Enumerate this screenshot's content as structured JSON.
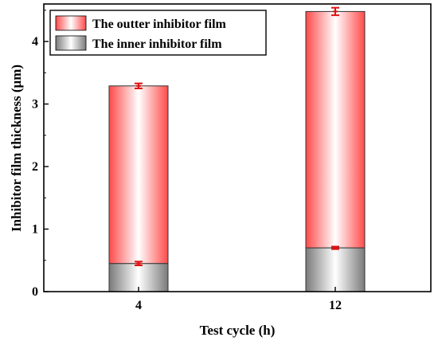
{
  "chart_data": {
    "type": "bar",
    "stacked": true,
    "categories": [
      "4",
      "12"
    ],
    "series": [
      {
        "name": "The inner inhibitor film",
        "values": [
          0.45,
          0.7
        ],
        "errors": [
          0.03,
          0.02
        ],
        "fill": "gradient-gray"
      },
      {
        "name": "The outter inhibitor film",
        "values": [
          2.84,
          3.78
        ],
        "errors": [
          0.04,
          0.06
        ],
        "fill": "gradient-red"
      }
    ],
    "xlabel": "Test cycle (h)",
    "ylabel": "Inhibitor film thickness (μm)",
    "ylim": [
      0,
      4.6
    ],
    "yticks": [
      "0",
      "1",
      "2",
      "3",
      "4"
    ],
    "legend_position": "top-left",
    "grid": false,
    "colors": {
      "outer_edge": "#ff4a4a",
      "outer_center": "#ffffff",
      "inner_edge": "#7a7a7a",
      "inner_center": "#ffffff",
      "error_bar": "#e01010"
    }
  }
}
